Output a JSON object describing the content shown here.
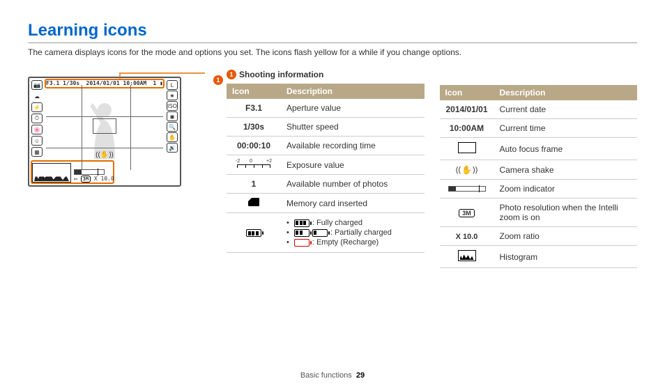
{
  "page": {
    "title": "Learning icons",
    "subtitle": "The camera displays icons for the mode and options you set. The icons flash yellow for a while if you change options.",
    "footer_section": "Basic functions",
    "footer_page": "29"
  },
  "callout": {
    "num": "1",
    "label": "Shooting information"
  },
  "lcd": {
    "aperture": "F3.1",
    "shutter": "1/30s",
    "date": "2014/01/01",
    "time": "10:00AM",
    "photos_left": "1",
    "zoom_text": "X 10.0",
    "reso_text": "3M"
  },
  "colors": {
    "heading": "#0066cc",
    "callout": "#e55a00",
    "highlight_border": "#e07000",
    "table_header_bg": "#b8a888",
    "table_header_fg": "#ffffff",
    "row_border": "#cccccc",
    "empty_battery": "#c00"
  },
  "tableA": {
    "headers": [
      "Icon",
      "Description"
    ],
    "rows": [
      {
        "icon_text": "F3.1",
        "icon_type": "seg7",
        "desc": "Aperture value"
      },
      {
        "icon_text": "1/30s",
        "icon_type": "seg7",
        "desc": "Shutter speed"
      },
      {
        "icon_text": "00:00:10",
        "icon_type": "seg7",
        "desc": "Available recording time"
      },
      {
        "icon_type": "ev_ruler",
        "desc": "Exposure value"
      },
      {
        "icon_text": "1",
        "icon_type": "seg7",
        "desc": "Available number of photos"
      },
      {
        "icon_type": "memcard",
        "desc": "Memory card inserted"
      },
      {
        "icon_type": "battery_list",
        "desc_list": [
          {
            "variant": "full",
            "text": ": Fully charged"
          },
          {
            "variant": "p2",
            "text": ": Partially charged",
            "pair": "p1"
          },
          {
            "variant": "empty",
            "text": ": Empty (Recharge)"
          }
        ]
      }
    ]
  },
  "tableB": {
    "headers": [
      "Icon",
      "Description"
    ],
    "rows": [
      {
        "icon_text": "2014/01/01",
        "icon_type": "seg7",
        "desc": "Current date"
      },
      {
        "icon_text": "10:00AM",
        "icon_type": "seg7",
        "desc": "Current time"
      },
      {
        "icon_type": "af_frame",
        "desc": "Auto focus frame"
      },
      {
        "icon_type": "shake",
        "desc": "Camera shake"
      },
      {
        "icon_type": "zoom_indicator",
        "desc": "Zoom indicator"
      },
      {
        "icon_type": "reso",
        "icon_text": "3M",
        "desc": "Photo resolution when the Intelli zoom is on"
      },
      {
        "icon_text": "X 10.0",
        "icon_type": "seg7small",
        "desc": "Zoom ratio"
      },
      {
        "icon_type": "histogram",
        "desc": "Histogram"
      }
    ]
  }
}
